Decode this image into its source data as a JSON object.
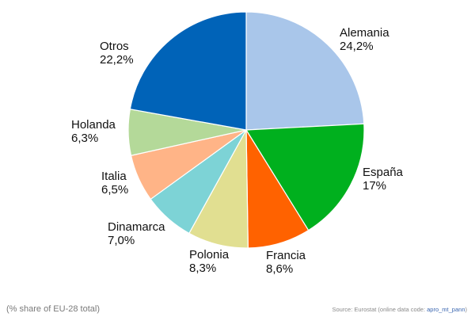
{
  "chart_data": {
    "type": "pie",
    "slices": [
      {
        "label": "Alemania",
        "value_text": "24,2%",
        "value": 24.2,
        "color": "#a9c6ea"
      },
      {
        "label": "España",
        "value_text": "17%",
        "value": 17.0,
        "color": "#00b01e"
      },
      {
        "label": "Francia",
        "value_text": "8,6%",
        "value": 8.6,
        "color": "#ff6200"
      },
      {
        "label": "Polonia",
        "value_text": "8,3%",
        "value": 8.3,
        "color": "#e1df91"
      },
      {
        "label": "Dinamarca",
        "value_text": "7,0%",
        "value": 7.0,
        "color": "#7dd3d6"
      },
      {
        "label": "Italia",
        "value_text": "6,5%",
        "value": 6.5,
        "color": "#ffb487"
      },
      {
        "label": "Holanda",
        "value_text": "6,3%",
        "value": 6.3,
        "color": "#b4d999"
      },
      {
        "label": "Otros",
        "value_text": "22,2%",
        "value": 22.2,
        "color": "#0063b8"
      }
    ]
  },
  "footer": {
    "note": "(% share of EU-28 total)",
    "source_prefix": "Source: Eurostat (online data code: ",
    "source_code": "apro_mt_pann",
    "source_suffix": ")"
  }
}
